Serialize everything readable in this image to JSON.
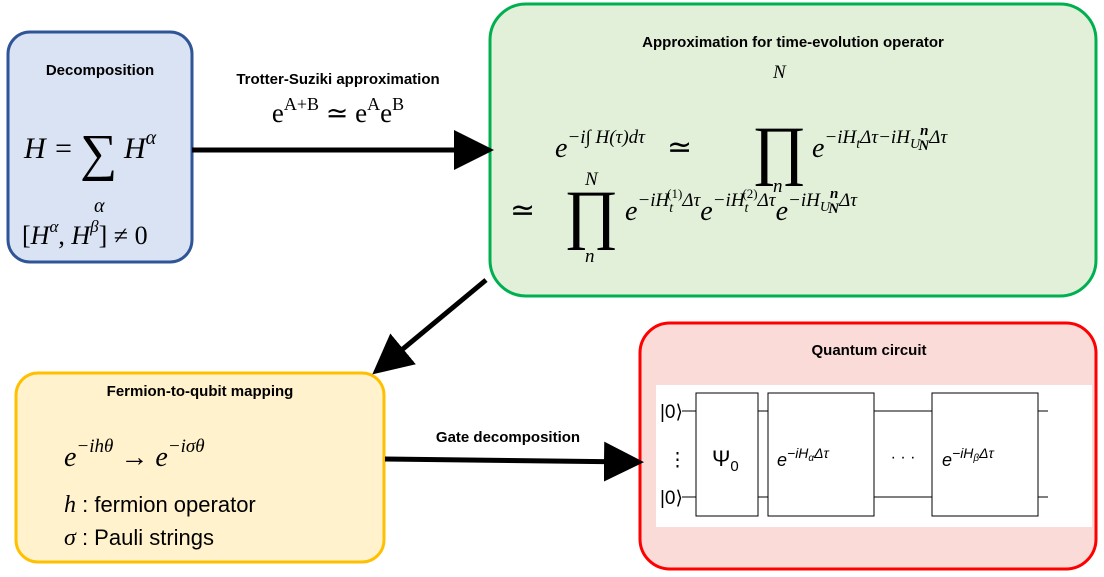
{
  "decomposition": {
    "title": "Decomposition",
    "sum": [
      "H = ",
      "∑",
      "α",
      "H",
      "α"
    ],
    "commutator": [
      "[",
      "H",
      "α",
      ", ",
      "H",
      "β",
      "] ≠ 0"
    ]
  },
  "trotter": {
    "label": "Trotter-Suziki approximation",
    "formula": [
      "e",
      "A+B",
      " ≃ e",
      "A",
      "e",
      "B"
    ]
  },
  "approximation": {
    "title": "Approximation for time-evolution operator",
    "line1": [
      "e",
      "−i∫ H(τ)dτ",
      "≃",
      "∏",
      "N",
      "n",
      "e",
      "−iH",
      "t",
      "Δτ−iH",
      "U",
      "n",
      "N",
      "Δτ"
    ],
    "line2": [
      "≃",
      "∏",
      "N",
      "n",
      "e",
      "−iH",
      "t",
      "(1)",
      "Δτ",
      "e",
      "−iH",
      "t",
      "(2)",
      "Δτ",
      "e",
      "−iH",
      "U",
      "n",
      "N",
      "Δτ"
    ]
  },
  "mapping": {
    "title": "Fermion-to-qubit mapping",
    "formula": [
      "e",
      "−ihθ",
      " → e",
      "−iσθ"
    ],
    "notes": [
      [
        "h",
        " : fermion operator"
      ],
      [
        "σ",
        " : Pauli strings"
      ]
    ]
  },
  "gate": {
    "label": "Gate decomposition"
  },
  "circuit": {
    "title": "Quantum circuit",
    "inputs": [
      "|0⟩",
      "⋮",
      "|0⟩"
    ],
    "state": [
      "Ψ",
      "0"
    ],
    "gate1": [
      "e",
      "−iH",
      "α",
      "Δτ"
    ],
    "dots": "· · ·",
    "gate2": [
      "e",
      "−iH",
      "β",
      "Δτ"
    ]
  }
}
